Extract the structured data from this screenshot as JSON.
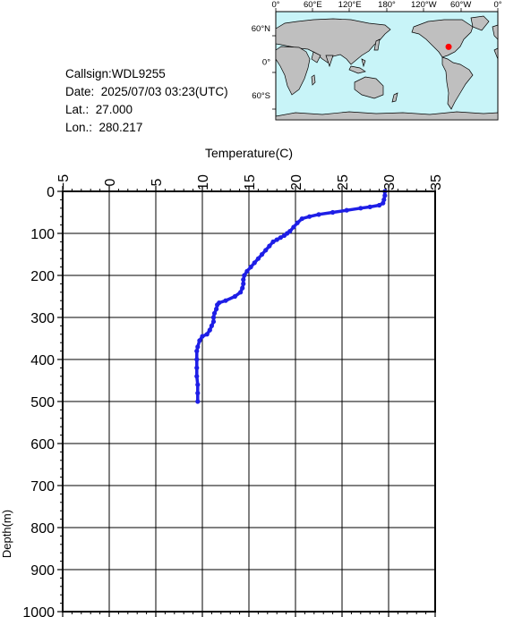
{
  "station": {
    "callsign": "Callsign:WDL9255",
    "date": "Date:  2025/07/03 03:23(UTC)",
    "lat": "Lat.:  27.000",
    "lon": "Lon.:  280.217"
  },
  "map": {
    "top_labels": [
      "0°",
      "60°E",
      "120°E",
      "180°",
      "120°W",
      "60°W",
      "0°"
    ],
    "side_labels": [
      "60°N",
      "0°",
      "60°S"
    ],
    "ocean_color": "#c8f4f8",
    "land_color": "#bfbfbf",
    "marker_color": "#ff0000",
    "marker": {
      "lon": 280.217,
      "lat": 27.0
    }
  },
  "chart_data": {
    "type": "line",
    "xlabel": "Temperature(C)",
    "ylabel": "Depth(m)",
    "xlim": [
      -5,
      35
    ],
    "ylim": [
      1000,
      0
    ],
    "x_ticks": [
      "−5",
      "0",
      "5",
      "10",
      "15",
      "20",
      "25",
      "30",
      "35"
    ],
    "y_ticks": [
      "0",
      "100",
      "200",
      "300",
      "400",
      "500",
      "600",
      "700",
      "800",
      "900",
      "1000"
    ],
    "grid": true,
    "line_color": "#1e1ee6",
    "series": [
      {
        "x": [
          29.6,
          29.6,
          29.5,
          29.4,
          29.0,
          28.0,
          27.0,
          25.5,
          24.0,
          22.5,
          21.5,
          20.7,
          20.2,
          19.8,
          19.4,
          19.1,
          18.8,
          18.4,
          18.0,
          17.6,
          17.2,
          16.8,
          16.4,
          16.0,
          15.6,
          15.2,
          14.8,
          14.5,
          14.4,
          14.4,
          14.3,
          14.1,
          13.5,
          12.5,
          11.8,
          11.6,
          11.5,
          11.3,
          11.2,
          11.2,
          11.0,
          10.8,
          10.5,
          10.0,
          9.7,
          9.5,
          9.4,
          9.4,
          9.4,
          9.4,
          9.5,
          9.5,
          9.5
        ],
        "y": [
          0,
          10,
          20,
          28,
          33,
          37,
          40,
          45,
          50,
          55,
          60,
          65,
          75,
          85,
          95,
          100,
          105,
          110,
          115,
          120,
          130,
          140,
          150,
          160,
          170,
          180,
          190,
          200,
          210,
          220,
          230,
          240,
          250,
          260,
          265,
          270,
          280,
          290,
          300,
          310,
          320,
          330,
          340,
          345,
          355,
          370,
          380,
          400,
          420,
          440,
          460,
          480,
          500
        ]
      }
    ]
  }
}
